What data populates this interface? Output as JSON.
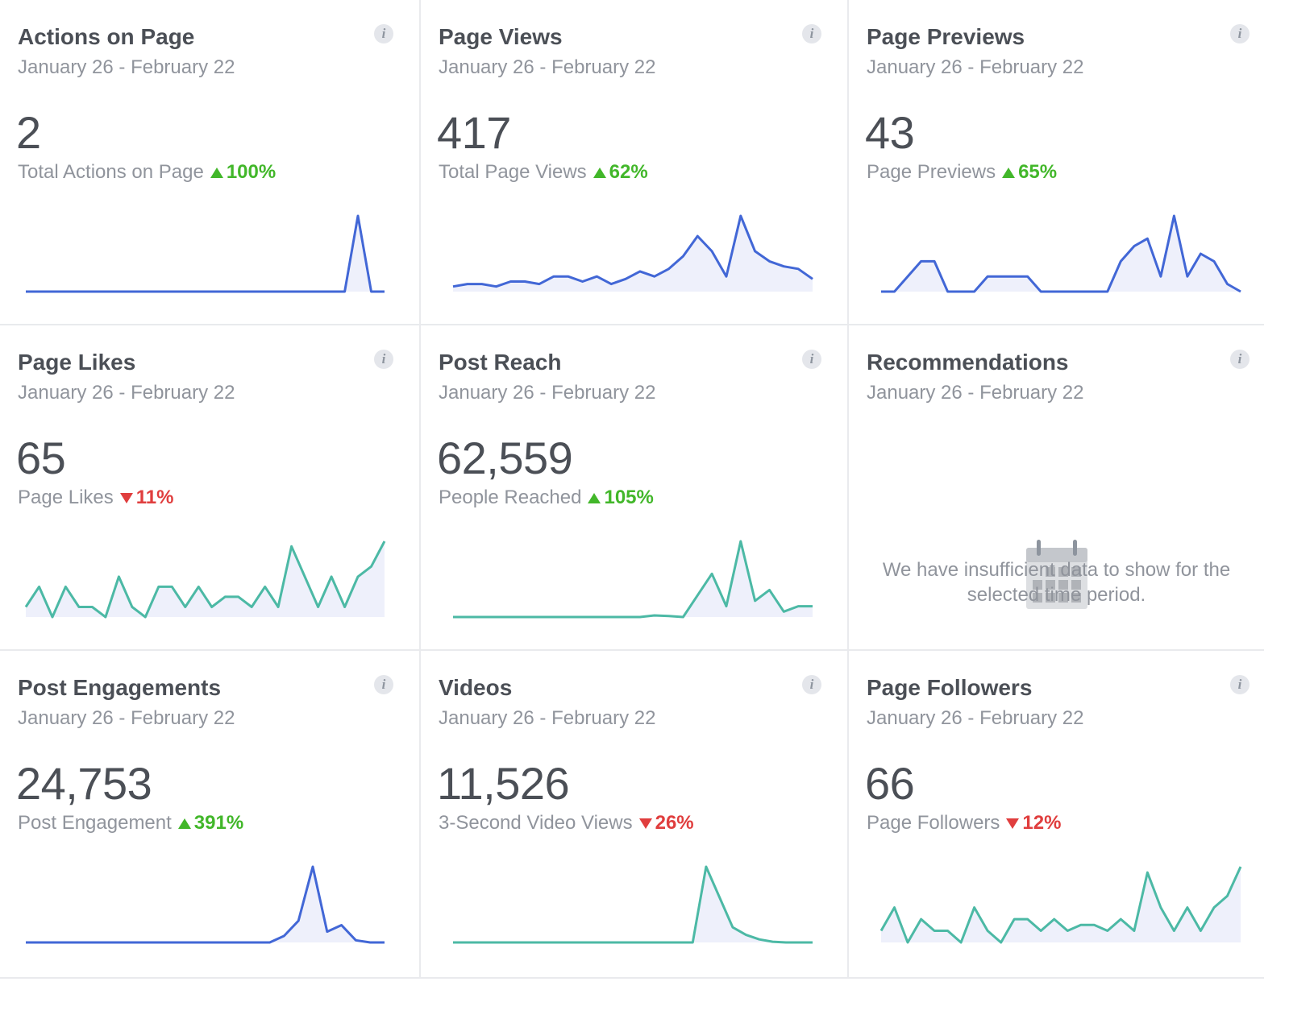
{
  "colors": {
    "blue_line": "#4267d6",
    "teal_line": "#4cb9a5",
    "fill": "#eef0fb",
    "up": "#42b72a",
    "down": "#e03e3e"
  },
  "info_icon_glyph": "i",
  "cards": [
    {
      "title": "Actions on Page",
      "date_range": "January 26 - February 22",
      "value": "2",
      "metric_label": "Total Actions on Page",
      "change": "100%",
      "direction": "up",
      "line_color": "blue",
      "series": [
        0,
        0,
        0,
        0,
        0,
        0,
        0,
        0,
        0,
        0,
        0,
        0,
        0,
        0,
        0,
        0,
        0,
        0,
        0,
        0,
        0,
        0,
        0,
        0,
        0,
        1,
        0,
        0
      ]
    },
    {
      "title": "Page Views",
      "date_range": "January 26 - February 22",
      "value": "417",
      "metric_label": "Total Page Views",
      "change": "62%",
      "direction": "up",
      "line_color": "blue",
      "series": [
        2,
        3,
        3,
        2,
        4,
        4,
        3,
        6,
        6,
        4,
        6,
        3,
        5,
        8,
        6,
        9,
        14,
        22,
        16,
        6,
        30,
        16,
        12,
        10,
        9,
        5
      ]
    },
    {
      "title": "Page Previews",
      "date_range": "January 26 - February 22",
      "value": "43",
      "metric_label": "Page Previews",
      "change": "65%",
      "direction": "up",
      "line_color": "blue",
      "series": [
        0,
        0,
        1,
        2,
        2,
        0,
        0,
        0,
        1,
        1,
        1,
        1,
        0,
        0,
        0,
        0,
        0,
        0,
        2,
        3,
        3.5,
        1,
        5,
        1,
        2.5,
        2,
        0.5,
        0
      ]
    },
    {
      "title": "Page Likes",
      "date_range": "January 26 - February 22",
      "value": "65",
      "metric_label": "Page Likes",
      "change": "11%",
      "direction": "down",
      "line_color": "teal",
      "series": [
        1,
        3,
        0,
        3,
        1,
        1,
        0,
        4,
        1,
        0,
        3,
        3,
        1,
        3,
        1,
        2,
        2,
        1,
        3,
        1,
        7,
        4,
        1,
        4,
        1,
        4,
        5,
        7.5
      ]
    },
    {
      "title": "Post Reach",
      "date_range": "January 26 - February 22",
      "value": "62,559",
      "metric_label": "People Reached",
      "change": "105%",
      "direction": "up",
      "line_color": "teal",
      "series": [
        0,
        0,
        0,
        0,
        0,
        0,
        0,
        0,
        0,
        0,
        0,
        0,
        0,
        0,
        0.3,
        0.2,
        0,
        4,
        8,
        2,
        14,
        3,
        5,
        1,
        2,
        2
      ]
    },
    {
      "title": "Recommendations",
      "date_range": "January 26 - February 22",
      "no_data_message": "We have insufficient data to show for the selected time period.",
      "calendar_icon": "calendar-icon"
    },
    {
      "title": "Post Engagements",
      "date_range": "January 26 - February 22",
      "value": "24,753",
      "metric_label": "Post Engagement",
      "change": "391%",
      "direction": "up",
      "line_color": "blue",
      "series": [
        0,
        0,
        0,
        0,
        0,
        0,
        0,
        0,
        0,
        0,
        0,
        0,
        0,
        0,
        0,
        0,
        0,
        0,
        0.3,
        1,
        3.5,
        0.5,
        0.8,
        0.1,
        0,
        0
      ]
    },
    {
      "title": "Videos",
      "date_range": "January 26 - February 22",
      "value": "11,526",
      "metric_label": "3-Second Video Views",
      "change": "26%",
      "direction": "down",
      "line_color": "teal",
      "series": [
        0,
        0,
        0,
        0,
        0,
        0,
        0,
        0,
        0,
        0,
        0,
        0,
        0,
        0,
        0,
        0,
        0,
        0,
        0,
        10,
        6,
        2,
        1,
        0.4,
        0.1,
        0,
        0,
        0
      ]
    },
    {
      "title": "Page Followers",
      "date_range": "January 26 - February 22",
      "value": "66",
      "metric_label": "Page Followers",
      "change": "12%",
      "direction": "down",
      "line_color": "teal",
      "series": [
        1,
        3,
        0,
        2,
        1,
        1,
        0,
        3,
        1,
        0,
        2,
        2,
        1,
        2,
        1,
        1.5,
        1.5,
        1,
        2,
        1,
        6,
        3,
        1,
        3,
        1,
        3,
        4,
        6.5
      ]
    }
  ]
}
